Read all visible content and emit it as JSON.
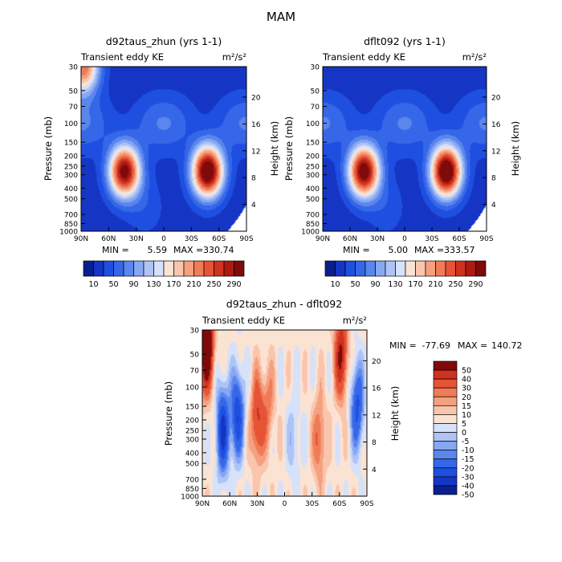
{
  "figure": {
    "title": "MAM"
  },
  "colors": {
    "top_scale": [
      "#0a1f8f",
      "#1535c5",
      "#1f4fe0",
      "#3567e8",
      "#5a86ee",
      "#86a7f2",
      "#aec3f6",
      "#d6e1fa",
      "#fbe3d4",
      "#f9c5ad",
      "#f5a07f",
      "#f07b57",
      "#e65336",
      "#cf3220",
      "#ad1a12",
      "#800a0a"
    ],
    "diff_scale": [
      "#0a1f8f",
      "#1535c5",
      "#1f4fe0",
      "#3567e8",
      "#5a86ee",
      "#86a7f2",
      "#aec3f6",
      "#d6e1fa",
      "#fbe3d4",
      "#f9c5ad",
      "#f5a07f",
      "#f07b57",
      "#e65336",
      "#cf3220",
      "#800a0a"
    ]
  },
  "chart_data": [
    {
      "type": "heatmap",
      "title": "d92taus_zhun (yrs 1-1)",
      "left_label": "Transient eddy KE",
      "units": "m²/s²",
      "xlabel": "",
      "ylabel": "Pressure (mb)",
      "ylabel_right": "Height (km)",
      "x_ticks": [
        "90N",
        "60N",
        "30N",
        "0",
        "30S",
        "60S",
        "90S"
      ],
      "x_range": [
        90,
        -90
      ],
      "y_ticks": [
        "30",
        "50",
        "70",
        "100",
        "150",
        "200",
        "250",
        "300",
        "400",
        "500",
        "700",
        "850",
        "1000"
      ],
      "y_range": [
        30,
        1000
      ],
      "y_scale": "log",
      "right_ticks": [
        "20",
        "16",
        "12",
        "8",
        "4"
      ],
      "min_label": "MIN =",
      "min_value": "5.59",
      "max_label": "MAX =",
      "max_value": "330.74",
      "colorbar_labels": [
        "10",
        "50",
        "90",
        "130",
        "170",
        "210",
        "250",
        "290"
      ],
      "features": [
        {
          "lat": 43,
          "p": 280,
          "amp": 290
        },
        {
          "lat": -48,
          "p": 280,
          "amp": 320
        },
        {
          "lat": 88,
          "p": 30,
          "amp": 210
        }
      ]
    },
    {
      "type": "heatmap",
      "title": "dflt092 (yrs 1-1)",
      "left_label": "Transient eddy KE",
      "units": "m²/s²",
      "xlabel": "",
      "ylabel": "Pressure (mb)",
      "ylabel_right": "Height (km)",
      "x_ticks": [
        "90N",
        "60N",
        "30N",
        "0",
        "30S",
        "60S",
        "90S"
      ],
      "x_range": [
        90,
        -90
      ],
      "y_ticks": [
        "30",
        "50",
        "70",
        "100",
        "150",
        "200",
        "250",
        "300",
        "400",
        "500",
        "700",
        "850",
        "1000"
      ],
      "y_range": [
        30,
        1000
      ],
      "y_scale": "log",
      "right_ticks": [
        "20",
        "16",
        "12",
        "8",
        "4"
      ],
      "min_label": "MIN =",
      "min_value": "5.00",
      "max_label": "MAX =",
      "max_value": "333.57",
      "colorbar_labels": [
        "10",
        "50",
        "90",
        "130",
        "170",
        "210",
        "250",
        "290"
      ],
      "features": [
        {
          "lat": 45,
          "p": 280,
          "amp": 300
        },
        {
          "lat": -46,
          "p": 280,
          "amp": 325
        }
      ]
    },
    {
      "type": "heatmap",
      "title": "d92taus_zhun - dflt092",
      "left_label": "Transient eddy KE",
      "units": "m²/s²",
      "xlabel": "",
      "ylabel": "Pressure (mb)",
      "ylabel_right": "Height (km)",
      "x_ticks": [
        "90N",
        "60N",
        "30N",
        "0",
        "30S",
        "60S",
        "90S"
      ],
      "x_range": [
        90,
        -90
      ],
      "y_ticks": [
        "30",
        "50",
        "70",
        "100",
        "150",
        "200",
        "250",
        "300",
        "400",
        "500",
        "700",
        "850",
        "1000"
      ],
      "y_range": [
        30,
        1000
      ],
      "y_scale": "log",
      "right_ticks": [
        "20",
        "16",
        "12",
        "8",
        "4"
      ],
      "min_label": "MIN =",
      "min_value": "-77.69",
      "max_label": "MAX =",
      "max_value": "140.72",
      "colorbar_labels": [
        "50",
        "40",
        "30",
        "20",
        "15",
        "10",
        "5",
        "0",
        "-5",
        "-10",
        "-15",
        "-20",
        "-30",
        "-40",
        "-50"
      ],
      "legend_position": "right",
      "features": [
        {
          "lat": 86,
          "p": 40,
          "amp": 70
        },
        {
          "lat": 68,
          "p": 250,
          "amp": -45
        },
        {
          "lat": 52,
          "p": 180,
          "amp": -40
        },
        {
          "lat": 30,
          "p": 200,
          "amp": 30
        },
        {
          "lat": 18,
          "p": 150,
          "amp": 15
        },
        {
          "lat": -10,
          "p": 300,
          "amp": -10
        },
        {
          "lat": -38,
          "p": 300,
          "amp": 20
        },
        {
          "lat": -62,
          "p": 50,
          "amp": 40
        },
        {
          "lat": -80,
          "p": 150,
          "amp": -35
        }
      ]
    }
  ]
}
